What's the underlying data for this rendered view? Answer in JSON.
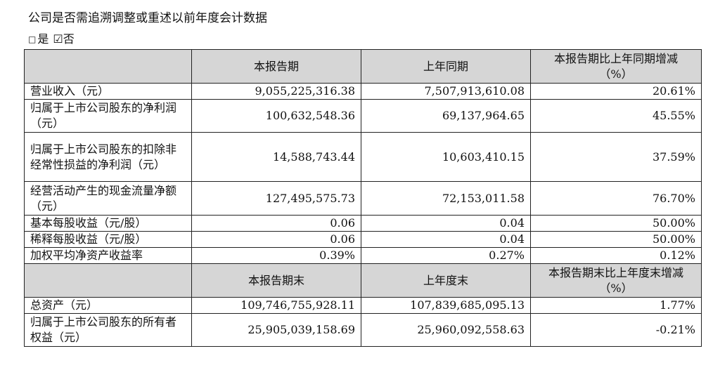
{
  "heading": "公司是否需追溯调整或重述以前年度会计数据",
  "choice": {
    "yes_box": "□",
    "yes_label": "是",
    "no_box": "☑",
    "no_label": "否"
  },
  "table": {
    "header1": {
      "current": "本报告期",
      "previous": "上年同期",
      "change_line1": "本报告期比上年同期增减",
      "change_line2": "（%）"
    },
    "rows1": [
      {
        "label": "营业收入（元）",
        "current": "9,055,225,316.38",
        "previous": "7,507,913,610.08",
        "change": "20.61%"
      },
      {
        "label": "归属于上市公司股东的净利润（元）",
        "current": "100,632,548.36",
        "previous": "69,137,964.65",
        "change": "45.55%"
      },
      {
        "label": "归属于上市公司股东的扣除非经常性损益的净利润（元）",
        "current": "14,588,743.44",
        "previous": "10,603,410.15",
        "change": "37.59%"
      },
      {
        "label": "经营活动产生的现金流量净额（元）",
        "current": "127,495,575.73",
        "previous": "72,153,011.58",
        "change": "76.70%"
      },
      {
        "label": "基本每股收益（元/股）",
        "current": "0.06",
        "previous": "0.04",
        "change": "50.00%"
      },
      {
        "label": "稀释每股收益（元/股）",
        "current": "0.06",
        "previous": "0.04",
        "change": "50.00%"
      },
      {
        "label": "加权平均净资产收益率",
        "current": "0.39%",
        "previous": "0.27%",
        "change": "0.12%"
      }
    ],
    "header2": {
      "current": "本报告期末",
      "previous": "上年度末",
      "change_line1": "本报告期末比上年度末增减",
      "change_line2": "（%）"
    },
    "rows2": [
      {
        "label": "总资产（元）",
        "current": "109,746,755,928.11",
        "previous": "107,839,685,095.13",
        "change": "1.77%"
      },
      {
        "label": "归属于上市公司股东的所有者权益（元）",
        "current": "25,905,039,158.69",
        "previous": "25,960,092,558.63",
        "change": "-0.21%"
      }
    ]
  }
}
